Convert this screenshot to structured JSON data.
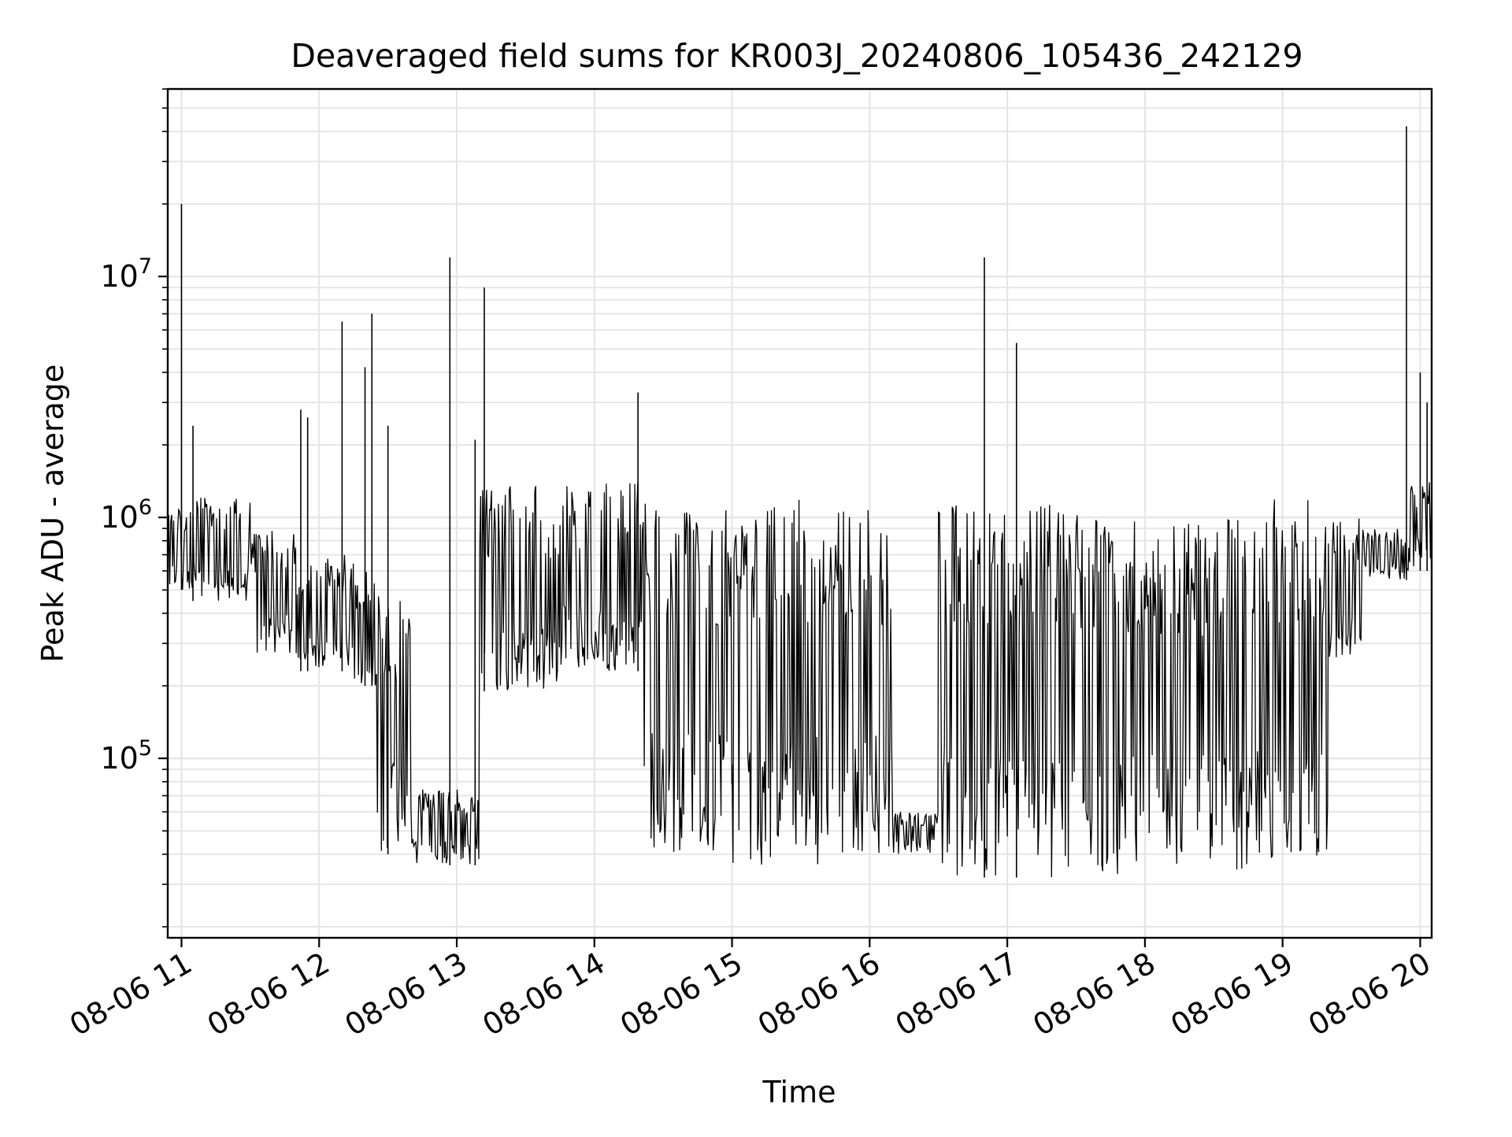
{
  "chart_data": {
    "type": "line",
    "title": "Deaveraged field sums for KR003J_20240806_105436_242129",
    "xlabel": "Time",
    "ylabel": "Peak ADU - average",
    "yscale": "log",
    "xlim": [
      "2024-08-06 10:54",
      "2024-08-06 20:05"
    ],
    "ylim": [
      18000,
      60000000
    ],
    "grid": true,
    "legend": "none",
    "line_color": "#000000",
    "grid_color": "#e6e6e6",
    "x_ticks": [
      {
        "value": "2024-08-06 11:00",
        "label": "08-06 11"
      },
      {
        "value": "2024-08-06 12:00",
        "label": "08-06 12"
      },
      {
        "value": "2024-08-06 13:00",
        "label": "08-06 13"
      },
      {
        "value": "2024-08-06 14:00",
        "label": "08-06 14"
      },
      {
        "value": "2024-08-06 15:00",
        "label": "08-06 15"
      },
      {
        "value": "2024-08-06 16:00",
        "label": "08-06 16"
      },
      {
        "value": "2024-08-06 17:00",
        "label": "08-06 17"
      },
      {
        "value": "2024-08-06 18:00",
        "label": "08-06 18"
      },
      {
        "value": "2024-08-06 19:00",
        "label": "08-06 19"
      },
      {
        "value": "2024-08-06 20:00",
        "label": "08-06 20"
      }
    ],
    "y_ticks": [
      {
        "value": 100000,
        "base": "10",
        "exp": "5"
      },
      {
        "value": 1000000,
        "base": "10",
        "exp": "6"
      },
      {
        "value": 10000000,
        "base": "10",
        "exp": "7"
      }
    ],
    "segments": [
      {
        "start": "2024-08-06 10:54",
        "end": "2024-08-06 11:05",
        "floor": 500000,
        "top": 1100000
      },
      {
        "start": "2024-08-06 11:05",
        "end": "2024-08-06 11:30",
        "floor": 450000,
        "top": 1250000
      },
      {
        "start": "2024-08-06 11:30",
        "end": "2024-08-06 11:50",
        "floor": 270000,
        "top": 900000
      },
      {
        "start": "2024-08-06 11:50",
        "end": "2024-08-06 12:15",
        "floor": 230000,
        "top": 700000
      },
      {
        "start": "2024-08-06 12:15",
        "end": "2024-08-06 12:25",
        "floor": 200000,
        "top": 600000
      },
      {
        "start": "2024-08-06 12:25",
        "end": "2024-08-06 12:40",
        "floor": 40000,
        "top": 500000
      },
      {
        "start": "2024-08-06 12:40",
        "end": "2024-08-06 13:10",
        "floor": 36000,
        "top": 75000
      },
      {
        "start": "2024-08-06 13:10",
        "end": "2024-08-06 13:25",
        "floor": 190000,
        "top": 1350000
      },
      {
        "start": "2024-08-06 13:25",
        "end": "2024-08-06 13:45",
        "floor": 185000,
        "top": 1350000
      },
      {
        "start": "2024-08-06 13:45",
        "end": "2024-08-06 14:20",
        "floor": 230000,
        "top": 1400000
      },
      {
        "start": "2024-08-06 14:20",
        "end": "2024-08-06 15:00",
        "floor": 40000,
        "top": 1150000
      },
      {
        "start": "2024-08-06 15:00",
        "end": "2024-08-06 15:40",
        "floor": 36000,
        "top": 1200000
      },
      {
        "start": "2024-08-06 15:40",
        "end": "2024-08-06 16:10",
        "floor": 38000,
        "top": 1150000
      },
      {
        "start": "2024-08-06 16:10",
        "end": "2024-08-06 16:30",
        "floor": 40000,
        "top": 60000
      },
      {
        "start": "2024-08-06 16:30",
        "end": "2024-08-06 17:15",
        "floor": 32000,
        "top": 1150000
      },
      {
        "start": "2024-08-06 17:15",
        "end": "2024-08-06 17:55",
        "floor": 32000,
        "top": 1150000
      },
      {
        "start": "2024-08-06 17:55",
        "end": "2024-08-06 18:50",
        "floor": 34000,
        "top": 1000000
      },
      {
        "start": "2024-08-06 18:50",
        "end": "2024-08-06 19:20",
        "floor": 38000,
        "top": 1200000
      },
      {
        "start": "2024-08-06 19:20",
        "end": "2024-08-06 19:35",
        "floor": 250000,
        "top": 1000000
      },
      {
        "start": "2024-08-06 19:35",
        "end": "2024-08-06 19:55",
        "floor": 550000,
        "top": 900000
      },
      {
        "start": "2024-08-06 19:55",
        "end": "2024-08-06 20:05",
        "floor": 600000,
        "top": 1500000
      }
    ],
    "spikes": [
      {
        "x": "2024-08-06 11:00",
        "y": 20000000
      },
      {
        "x": "2024-08-06 11:05",
        "y": 2400000
      },
      {
        "x": "2024-08-06 11:52",
        "y": 2800000
      },
      {
        "x": "2024-08-06 11:55",
        "y": 2600000
      },
      {
        "x": "2024-08-06 12:10",
        "y": 6500000
      },
      {
        "x": "2024-08-06 12:20",
        "y": 4200000
      },
      {
        "x": "2024-08-06 12:23",
        "y": 7000000
      },
      {
        "x": "2024-08-06 12:30",
        "y": 2400000
      },
      {
        "x": "2024-08-06 12:57",
        "y": 12000000
      },
      {
        "x": "2024-08-06 13:08",
        "y": 2100000
      },
      {
        "x": "2024-08-06 13:12",
        "y": 9000000
      },
      {
        "x": "2024-08-06 14:19",
        "y": 3300000
      },
      {
        "x": "2024-08-06 16:50",
        "y": 12000000
      },
      {
        "x": "2024-08-06 17:04",
        "y": 5300000
      },
      {
        "x": "2024-08-06 19:54",
        "y": 42000000
      },
      {
        "x": "2024-08-06 20:00",
        "y": 4000000
      },
      {
        "x": "2024-08-06 20:03",
        "y": 3000000
      }
    ]
  }
}
